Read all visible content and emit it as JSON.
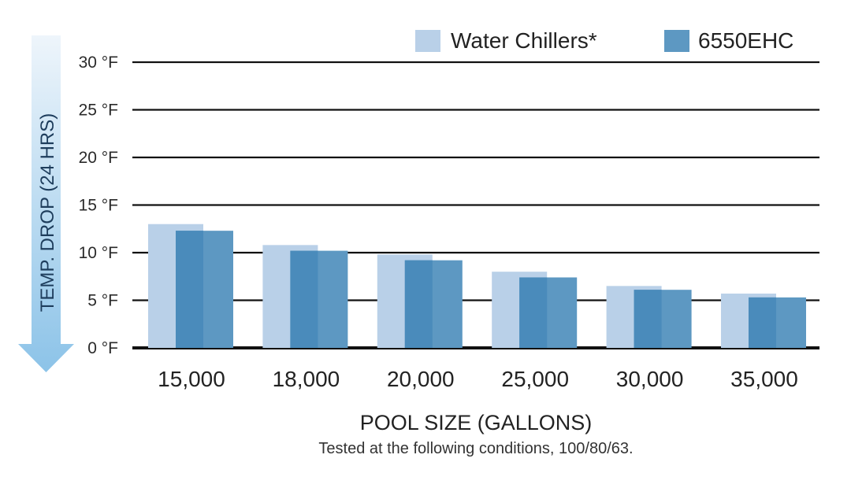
{
  "chart_data": {
    "type": "bar",
    "title": "",
    "categories": [
      "15,000",
      "18,000",
      "20,000",
      "25,000",
      "30,000",
      "35,000"
    ],
    "series": [
      {
        "name": "Water Chillers*",
        "values": [
          13.0,
          10.8,
          9.8,
          8.0,
          6.5,
          5.7
        ],
        "color": "#b9d0e8"
      },
      {
        "name": "6550EHC",
        "values": [
          12.3,
          10.2,
          9.2,
          7.4,
          6.1,
          5.3
        ],
        "color": "#5d98c2"
      }
    ],
    "ylim": [
      0,
      30
    ],
    "yticks": [
      0,
      5,
      10,
      15,
      20,
      25,
      30
    ],
    "ytick_labels": [
      "0 °F",
      "5 °F",
      "10 °F",
      "15 °F",
      "20 °F",
      "25 °F",
      "30 °F"
    ],
    "ylabel": "TEMP. DROP (24 HRS)",
    "xlabel": "POOL SIZE (GALLONS)",
    "note": "Tested at the following conditions, 100/80/63.",
    "legend_position": "top-right",
    "grid": true
  },
  "colors": {
    "series_light": "#b9d0e8",
    "series_dark": "#5d98c2",
    "series_dark_front": "#4a8bbb",
    "gridline": "#111111",
    "arrow_top": "#eef5fb",
    "arrow_bottom": "#8cc3e8"
  }
}
